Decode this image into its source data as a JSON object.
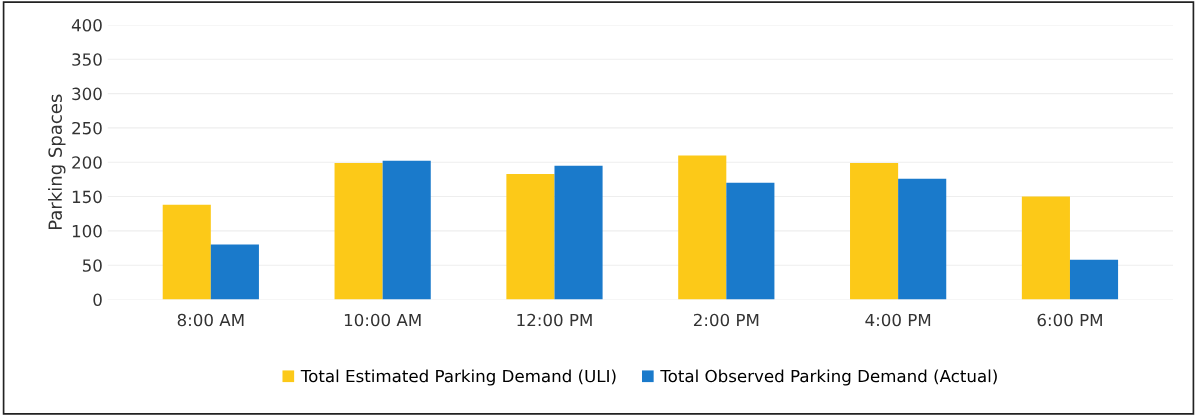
{
  "chart_data": {
    "type": "bar",
    "ylabel": "Parking Spaces",
    "categories": [
      "8:00 AM",
      "10:00 AM",
      "12:00 PM",
      "2:00 PM",
      "4:00 PM",
      "6:00 PM"
    ],
    "series": [
      {
        "name": "Total Estimated Parking Demand (ULI)",
        "color": "#fcc918",
        "values": [
          138,
          199,
          183,
          210,
          199,
          150
        ]
      },
      {
        "name": "Total Observed Parking Demand (Actual)",
        "color": "#1a7acb",
        "values": [
          80,
          202,
          195,
          170,
          176,
          58
        ]
      }
    ],
    "ylim": [
      0,
      400
    ],
    "yticks": [
      0,
      50,
      100,
      150,
      200,
      250,
      300,
      350,
      400
    ],
    "grid": "y",
    "legend": "bottom"
  }
}
